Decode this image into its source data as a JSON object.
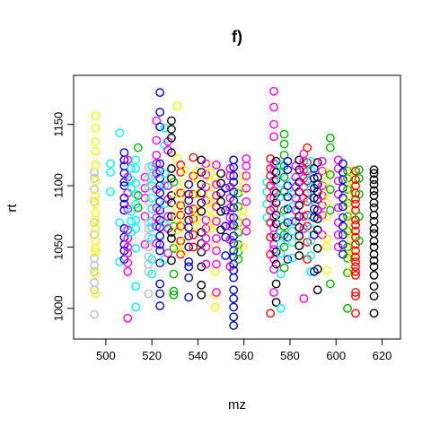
{
  "chart_data": {
    "type": "scatter",
    "title": "f)",
    "xlabel": "mz",
    "ylabel": "rt",
    "xlim": [
      486,
      628
    ],
    "ylim": [
      975,
      1190
    ],
    "xticks": [
      500,
      520,
      540,
      560,
      580,
      600,
      620
    ],
    "yticks": [
      1000,
      1050,
      1100,
      1150
    ],
    "grid": false,
    "marker": "open-circle",
    "palette": [
      "#bebebe",
      "#ffff00",
      "#00ffff",
      "#0000cd",
      "#ff00ff",
      "#00b000",
      "#000000",
      "#ff0000"
    ],
    "columns": [
      {
        "x": 495,
        "y": [
          995,
          1015,
          1021,
          1030,
          1035,
          1041,
          1060,
          1070,
          1087,
          1097,
          1106,
          1111
        ],
        "color": "#bebebe"
      },
      {
        "x": 495.5,
        "y": [
          1012,
          1028,
          1046,
          1049,
          1055,
          1065,
          1072,
          1078,
          1085,
          1092,
          1104,
          1117,
          1128,
          1136,
          1147,
          1157
        ],
        "color": "#ffff00"
      },
      {
        "x": 502,
        "y": [
          1095,
          1111,
          1118
        ],
        "color": "#00ffff"
      },
      {
        "x": 506,
        "y": [
          1038,
          1070,
          1143
        ],
        "color": "#00ffff"
      },
      {
        "x": 508,
        "y": [
          1040,
          1047,
          1052,
          1058,
          1065,
          1080,
          1085,
          1090,
          1100,
          1103,
          1110,
          1116,
          1121,
          1127
        ],
        "color": "#0000cd"
      },
      {
        "x": 509.5,
        "y": [
          992,
          1030,
          1037,
          1045,
          1050,
          1057,
          1064,
          1081,
          1094,
          1107,
          1121
        ],
        "color": "#ff00ff"
      },
      {
        "x": 511,
        "y": [
          1062,
          1071,
          1079,
          1098,
          1105,
          1114
        ],
        "color": "#00ffff"
      },
      {
        "x": 513,
        "y": [
          1001,
          1018,
          1049,
          1065,
          1072,
          1085,
          1093,
          1102,
          1114,
          1121
        ],
        "color": "#00ffff"
      },
      {
        "x": 514,
        "y": [
          1082,
          1092,
          1131
        ],
        "color": "#00b000"
      },
      {
        "x": 517,
        "y": [
          1052,
          1075,
          1090,
          1098,
          1107
        ],
        "color": "#ff00ff"
      },
      {
        "x": 518.5,
        "y": [
          1012,
          1030,
          1036,
          1042,
          1050,
          1058,
          1065,
          1070,
          1087,
          1099,
          1106,
          1115
        ],
        "color": "#bebebe"
      },
      {
        "x": 520,
        "y": [
          1028,
          1040,
          1057,
          1066,
          1071,
          1081,
          1090,
          1100,
          1108,
          1116
        ],
        "color": "#00ffff"
      },
      {
        "x": 522,
        "y": [
          1053,
          1067,
          1074,
          1082,
          1097,
          1110,
          1118,
          1125,
          1137,
          1153
        ],
        "color": "#ff00ff"
      },
      {
        "x": 523.5,
        "y": [
          1002,
          1012,
          1020,
          1037,
          1047,
          1052,
          1059,
          1066,
          1072,
          1080,
          1087,
          1094,
          1100,
          1106,
          1112,
          1118,
          1148,
          1160,
          1176
        ],
        "color": "#0000cd"
      },
      {
        "x": 525.5,
        "y": [
          1040,
          1069,
          1085,
          1100,
          1110,
          1133,
          1147
        ],
        "color": "#00ffff"
      },
      {
        "x": 527,
        "y": [
          1045,
          1065,
          1075,
          1089,
          1100,
          1129,
          1136
        ],
        "color": "#ff00ff"
      },
      {
        "x": 528.5,
        "y": [
          1039,
          1057,
          1062,
          1075,
          1086,
          1092,
          1106,
          1114,
          1127,
          1139,
          1146,
          1153
        ],
        "color": "#000000"
      },
      {
        "x": 529.5,
        "y": [
          1011,
          1014,
          1028,
          1049,
          1067,
          1103
        ],
        "color": "#00b000"
      },
      {
        "x": 531,
        "y": [
          1050,
          1064,
          1073,
          1082,
          1094,
          1122,
          1165
        ],
        "color": "#ffff00"
      },
      {
        "x": 532.5,
        "y": [
          1044,
          1055,
          1067,
          1076,
          1084,
          1094,
          1111,
          1117
        ],
        "color": "#ff0000"
      },
      {
        "x": 534,
        "y": [
          1046,
          1054,
          1067,
          1075,
          1085,
          1093,
          1102,
          1113
        ],
        "color": "#ffff00"
      },
      {
        "x": 536,
        "y": [
          1009,
          1025,
          1034,
          1038,
          1050,
          1059,
          1066,
          1072,
          1080,
          1088,
          1093,
          1101
        ],
        "color": "#0000cd"
      },
      {
        "x": 538,
        "y": [
          1050,
          1060,
          1073,
          1081,
          1093,
          1108,
          1123
        ],
        "color": "#ff0000"
      },
      {
        "x": 539.5,
        "y": [
          1067,
          1073,
          1080,
          1093,
          1106,
          1112
        ],
        "color": "#ffff00"
      },
      {
        "x": 541.5,
        "y": [
          1011,
          1019,
          1034,
          1046,
          1053,
          1062,
          1079,
          1086,
          1094,
          1101,
          1111,
          1121
        ],
        "color": "#000000"
      },
      {
        "x": 543.5,
        "y": [
          1036,
          1050,
          1057,
          1065,
          1072,
          1088,
          1099,
          1109,
          1118
        ],
        "color": "#ff00ff"
      },
      {
        "x": 545.5,
        "y": [
          1065,
          1074,
          1081,
          1086,
          1093,
          1103,
          1110,
          1116
        ],
        "color": "#ffff00"
      },
      {
        "x": 547.5,
        "y": [
          1001,
          1011,
          1030,
          1052,
          1068,
          1077,
          1087,
          1098,
          1106
        ],
        "color": "#ffff00"
      },
      {
        "x": 548,
        "y": [
          1013,
          1036,
          1047,
          1057,
          1071,
          1083,
          1092,
          1101,
          1117
        ],
        "color": "#ff00ff"
      },
      {
        "x": 550,
        "y": [
          1064,
          1079,
          1087,
          1094,
          1102,
          1110
        ],
        "color": "#000000"
      },
      {
        "x": 552,
        "y": [
          1043,
          1058,
          1067,
          1080,
          1098
        ],
        "color": "#0000cd"
      },
      {
        "x": 554,
        "y": [
          1034,
          1056,
          1067,
          1074,
          1082,
          1090,
          1099,
          1108,
          1114
        ],
        "color": "#ff00ff"
      },
      {
        "x": 555.5,
        "y": [
          986,
          993,
          1001,
          1008,
          1015,
          1025,
          1031,
          1036,
          1042,
          1047,
          1053,
          1059,
          1068,
          1074,
          1082,
          1088,
          1095,
          1103,
          1108,
          1115,
          1121
        ],
        "color": "#0000cd"
      },
      {
        "x": 557.5,
        "y": [
          1040,
          1046,
          1052,
          1062,
          1070,
          1083,
          1094
        ],
        "color": "#00b000"
      },
      {
        "x": 559.5,
        "y": [
          1050,
          1066,
          1074,
          1080,
          1097,
          1103,
          1108
        ],
        "color": "#ffff00"
      },
      {
        "x": 561,
        "y": [
          1063,
          1070,
          1087,
          1098,
          1108,
          1116,
          1122
        ],
        "color": "#ff00ff"
      },
      {
        "x": 570,
        "y": [
          1074,
          1085,
          1095,
          1103
        ],
        "color": "#00ffff"
      },
      {
        "x": 571.5,
        "y": [
          996,
          1044,
          1058,
          1070,
          1080,
          1090,
          1100,
          1108,
          1114,
          1122
        ],
        "color": "#ff0000"
      },
      {
        "x": 573,
        "y": [
          1013,
          1032,
          1040,
          1048,
          1052,
          1060,
          1066,
          1074,
          1082,
          1090,
          1096,
          1104,
          1112,
          1118,
          1140,
          1150,
          1164,
          1177
        ],
        "color": "#ff00ff"
      },
      {
        "x": 574,
        "y": [
          1005,
          1020,
          1036,
          1046,
          1058,
          1069,
          1076,
          1086,
          1094,
          1105,
          1111,
          1120
        ],
        "color": "#000000"
      },
      {
        "x": 576,
        "y": [
          1000,
          1028,
          1045,
          1053,
          1062,
          1073,
          1091,
          1102,
          1110,
          1117
        ],
        "color": "#00ffff"
      },
      {
        "x": 577.5,
        "y": [
          1033,
          1050,
          1060,
          1067,
          1080,
          1095,
          1107,
          1116,
          1125,
          1134,
          1142
        ],
        "color": "#00b000"
      },
      {
        "x": 579,
        "y": [
          1040,
          1058,
          1070,
          1081,
          1091,
          1100,
          1113,
          1120
        ],
        "color": "#0000cd"
      },
      {
        "x": 581,
        "y": [
          1041,
          1054,
          1063,
          1071,
          1083,
          1093,
          1103
        ],
        "color": "#00ffff"
      },
      {
        "x": 582.5,
        "y": [
          1071,
          1080,
          1090,
          1099,
          1107,
          1116
        ],
        "color": "#ff00ff"
      },
      {
        "x": 584,
        "y": [
          1043,
          1051,
          1059,
          1066,
          1075,
          1084,
          1095,
          1103,
          1113,
          1121
        ],
        "color": "#000000"
      },
      {
        "x": 586,
        "y": [
          1008,
          1065,
          1075,
          1090,
          1099,
          1106,
          1113,
          1120,
          1126
        ],
        "color": "#ff00ff"
      },
      {
        "x": 587.5,
        "y": [
          1040,
          1054,
          1067,
          1076,
          1087,
          1094,
          1104,
          1112,
          1119,
          1131
        ],
        "color": "#ff0000"
      },
      {
        "x": 589,
        "y": [
          1030,
          1043,
          1055,
          1065,
          1075,
          1088,
          1097,
          1105,
          1113,
          1120
        ],
        "color": "#00ffff"
      },
      {
        "x": 590.5,
        "y": [
          1030,
          1060,
          1074,
          1081,
          1090,
          1098,
          1106,
          1114
        ],
        "color": "#0000cd"
      },
      {
        "x": 592,
        "y": [
          1015,
          1032,
          1049,
          1064,
          1073,
          1080,
          1089,
          1095,
          1101,
          1107,
          1119
        ],
        "color": "#000000"
      },
      {
        "x": 594,
        "y": [
          1060,
          1076,
          1084,
          1092,
          1100,
          1112,
          1120
        ],
        "color": "#ff00ff"
      },
      {
        "x": 596,
        "y": [
          1031,
          1050,
          1057,
          1075,
          1086,
          1094,
          1104,
          1111
        ],
        "color": "#ffff00"
      },
      {
        "x": 597.5,
        "y": [
          1020,
          1080,
          1097,
          1109,
          1131,
          1139
        ],
        "color": "#00b000"
      },
      {
        "x": 601,
        "y": [
          1050,
          1060,
          1070,
          1082,
          1093,
          1104,
          1114,
          1121
        ],
        "color": "#ff00ff"
      },
      {
        "x": 603,
        "y": [
          1044,
          1052,
          1060,
          1067,
          1074,
          1083,
          1090,
          1098,
          1105,
          1111,
          1118
        ],
        "color": "#0000cd"
      },
      {
        "x": 605,
        "y": [
          1000,
          1029,
          1041,
          1050,
          1063,
          1075,
          1086,
          1097,
          1106,
          1112
        ],
        "color": "#00b000"
      },
      {
        "x": 606.5,
        "y": [
          1030,
          1041,
          1048,
          1057,
          1064,
          1072,
          1081,
          1089,
          1097,
          1104,
          1112
        ],
        "color": "#ffff00"
      },
      {
        "x": 608.5,
        "y": [
          996,
          1010,
          1013,
          1027,
          1030,
          1034,
          1038,
          1042,
          1047,
          1052,
          1058,
          1063,
          1068,
          1072,
          1080,
          1085,
          1089,
          1094,
          1100,
          1105,
          1112
        ],
        "color": "#ff0000"
      },
      {
        "x": 610,
        "y": [
          1055,
          1075,
          1093,
          1106,
          1113
        ],
        "color": "#00b000"
      },
      {
        "x": 616.5,
        "y": [
          996,
          1010,
          1018,
          1027,
          1034,
          1039,
          1044,
          1050,
          1055,
          1061,
          1065,
          1071,
          1076,
          1082,
          1086,
          1092,
          1096,
          1101,
          1105,
          1110,
          1113
        ],
        "color": "#000000"
      }
    ]
  }
}
